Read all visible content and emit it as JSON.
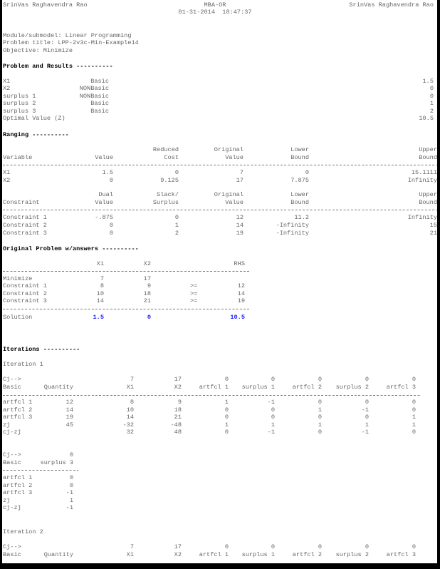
{
  "header": {
    "left_name": "SrinVas Raghavendra Rao",
    "center_title": "MBA-OR",
    "datetime": "01-31-2014  18:47:37",
    "right_name": "SrinVas Raghavendra Rao"
  },
  "info": {
    "module": "Module/submodel: Linear Programming",
    "problem_title": "Problem title: LPP-2v3c-Min-Example14",
    "objective": "Objective: Minimize"
  },
  "results": {
    "heading": "Problem and Results ----------",
    "rows": [
      [
        "X1",
        "Basic",
        "1.5"
      ],
      [
        "X2",
        "NONBasic",
        "0"
      ],
      [
        "surplus 1",
        "NONBasic",
        "0"
      ],
      [
        "surplus 2",
        "Basic",
        "1"
      ],
      [
        "surplus 3",
        "Basic",
        "2"
      ],
      [
        "Optimal Value (Z)",
        "",
        "10.5"
      ]
    ]
  },
  "ranging": {
    "heading": "Ranging ----------",
    "variable_headers_top": [
      "",
      "",
      "Reduced",
      "Original",
      "Lower",
      "Upper"
    ],
    "variable_headers": [
      "Variable",
      "Value",
      "Cost",
      "Value",
      "Bound",
      "Bound"
    ],
    "variables": [
      [
        "X1",
        "1.5",
        "0",
        "7",
        "0",
        "15.1111"
      ],
      [
        "X2",
        "0",
        "9.125",
        "17",
        "7.875",
        "Infinity"
      ]
    ],
    "constraint_headers_top": [
      "",
      "Dual",
      "Slack/",
      "Original",
      "Lower",
      "Upper"
    ],
    "constraint_headers": [
      "Constraint",
      "Value",
      "Surplus",
      "Value",
      "Bound",
      "Bound"
    ],
    "constraints": [
      [
        "Constraint 1",
        "-.875",
        "0",
        "12",
        "11.2",
        "Infinity"
      ],
      [
        "Constraint 2",
        "0",
        "1",
        "14",
        "-Infinity",
        "15"
      ],
      [
        "Constraint 3",
        "0",
        "2",
        "19",
        "-Infinity",
        "21"
      ]
    ]
  },
  "original": {
    "heading": "Original Problem w/answers ----------",
    "headers": [
      "",
      "X1",
      "X2",
      "",
      "RHS"
    ],
    "rows": [
      [
        "Minimize",
        "7",
        "17",
        "",
        ""
      ],
      [
        "Constraint 1",
        "8",
        "9",
        ">=",
        "12"
      ],
      [
        "Constraint 2",
        "10",
        "18",
        ">=",
        "14"
      ],
      [
        "Constraint 3",
        "14",
        "21",
        ">=",
        "19"
      ]
    ],
    "solution": [
      "Solution",
      "1.5",
      "0",
      "",
      "10.5"
    ],
    "solution_color": "#1a1aff"
  },
  "iterations": {
    "heading": "Iterations ----------",
    "iteration1": {
      "label": "Iteration 1",
      "cj": [
        "Cj-->",
        "",
        "7",
        "17",
        "0",
        "0",
        "0",
        "0",
        "0"
      ],
      "headers": [
        "Basic",
        "Quantity",
        "X1",
        "X2",
        "artfcl 1",
        "surplus 1",
        "artfcl 2",
        "surplus 2",
        "artfcl 3"
      ],
      "rows": [
        [
          "artfcl 1",
          "12",
          "8",
          "9",
          "1",
          "-1",
          "0",
          "0",
          "0"
        ],
        [
          "artfcl 2",
          "14",
          "10",
          "18",
          "0",
          "0",
          "1",
          "-1",
          "0"
        ],
        [
          "artfcl 3",
          "19",
          "14",
          "21",
          "0",
          "0",
          "0",
          "0",
          "1"
        ],
        [
          "zj",
          "45",
          "-32",
          "-48",
          "1",
          "1",
          "1",
          "1",
          "1"
        ],
        [
          "cj-zj",
          "",
          "32",
          "48",
          "0",
          "-1",
          "0",
          "-1",
          "0"
        ]
      ],
      "cont_cj": [
        "Cj-->",
        "0"
      ],
      "cont_headers": [
        "Basic",
        "surplus 3"
      ],
      "cont_rows": [
        [
          "artfcl 1",
          "0"
        ],
        [
          "artfcl 2",
          "0"
        ],
        [
          "artfcl 3",
          "-1"
        ],
        [
          "zj",
          "1"
        ],
        [
          "cj-zj",
          "-1"
        ]
      ]
    },
    "iteration2": {
      "label": "Iteration 2",
      "cj": [
        "Cj-->",
        "",
        "7",
        "17",
        "0",
        "0",
        "0",
        "0",
        "0"
      ],
      "headers": [
        "Basic",
        "Quantity",
        "X1",
        "X2",
        "artfcl 1",
        "surplus 1",
        "artfcl 2",
        "surplus 2",
        "artfcl 3"
      ]
    }
  }
}
